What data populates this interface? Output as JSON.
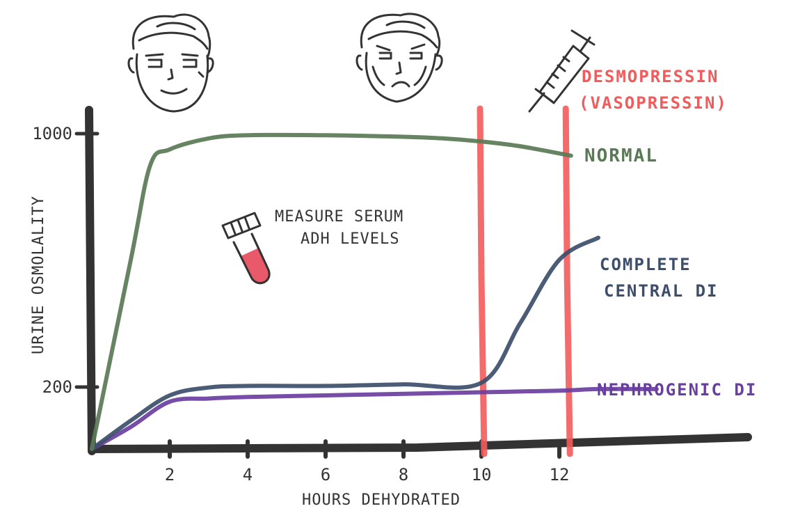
{
  "chart_data": {
    "type": "line",
    "xlabel": "HOURS DEHYDRATED",
    "ylabel": "URINE OSMOLALITY",
    "x_ticks": [
      "2",
      "4",
      "6",
      "8",
      "10",
      "12"
    ],
    "y_ticks": [
      "200",
      "1000"
    ],
    "series": [
      {
        "name": "NORMAL",
        "color": "#5a7a55",
        "x": [
          0,
          1,
          1.5,
          2,
          3,
          4,
          6,
          8,
          9,
          10,
          11,
          12.3
        ],
        "y": [
          0,
          600,
          900,
          950,
          985,
          995,
          995,
          990,
          985,
          975,
          960,
          930
        ]
      },
      {
        "name": "COMPLETE CENTRAL DI",
        "color": "#3c4e6a",
        "x": [
          0,
          1,
          2,
          3,
          4,
          6,
          8,
          10,
          11,
          12,
          13
        ],
        "y": [
          0,
          90,
          170,
          195,
          200,
          200,
          205,
          210,
          400,
          600,
          670
        ]
      },
      {
        "name": "NEPHROGENIC DI",
        "color": "#6a3ea0",
        "x": [
          0,
          1,
          2,
          3,
          4,
          6,
          8,
          10,
          12,
          13,
          14.5
        ],
        "y": [
          0,
          70,
          150,
          160,
          165,
          170,
          175,
          180,
          185,
          190,
          190
        ]
      }
    ],
    "markers": [
      {
        "x": 10,
        "color": "#f25b5b"
      },
      {
        "x": 12.2,
        "color": "#f25b5b"
      }
    ]
  },
  "annotations": {
    "desmopressin_line1": "DESMOPRESSIN",
    "desmopressin_line2": "(VASOPRESSIN)",
    "measure_line1": "MEASURE SERUM",
    "measure_line2": "ADH LEVELS"
  },
  "colors": {
    "axis": "#333333",
    "tube_fill": "#e85a6a",
    "face_stroke": "#333333"
  },
  "icons": [
    "smiling-face-icon",
    "tired-face-icon",
    "syringe-icon",
    "blood-tube-icon"
  ]
}
